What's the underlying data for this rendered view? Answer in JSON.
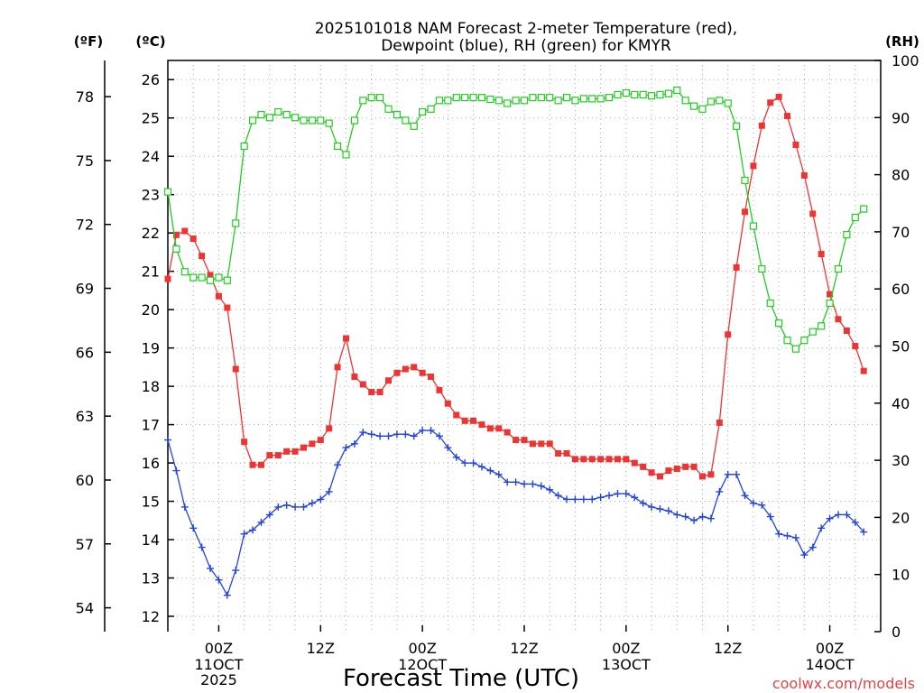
{
  "chart_data": {
    "type": "line",
    "title_line1": "2025101018 NAM Forecast 2-meter Temperature (red),",
    "title_line2": "Dewpoint (blue), RH (green) for KMYR",
    "xlabel": "Forecast Time (UTC)",
    "credit": "coolwx.com/models",
    "unit_f": "(ºF)",
    "unit_c": "(ºC)",
    "unit_rh": "(RH)",
    "x_hours": [
      0,
      84
    ],
    "ylim_c": [
      11.6,
      26.5
    ],
    "ylim_rh": [
      0,
      100
    ],
    "y_ticks_c": [
      12,
      13,
      14,
      15,
      16,
      17,
      18,
      19,
      20,
      21,
      22,
      23,
      24,
      25,
      26
    ],
    "y_ticks_f": [
      54,
      57,
      60,
      63,
      66,
      69,
      72,
      75,
      78
    ],
    "y_ticks_rh": [
      0,
      10,
      20,
      30,
      40,
      50,
      60,
      70,
      80,
      90,
      100
    ],
    "x_ticks": [
      {
        "hour": 6,
        "label": "00Z",
        "label2": "11OCT",
        "label3": "2025"
      },
      {
        "hour": 18,
        "label": "12Z",
        "label2": "",
        "label3": ""
      },
      {
        "hour": 30,
        "label": "00Z",
        "label2": "12OCT",
        "label3": ""
      },
      {
        "hour": 42,
        "label": "12Z",
        "label2": "",
        "label3": ""
      },
      {
        "hour": 54,
        "label": "00Z",
        "label2": "13OCT",
        "label3": ""
      },
      {
        "hour": 66,
        "label": "12Z",
        "label2": "",
        "label3": ""
      },
      {
        "hour": 78,
        "label": "00Z",
        "label2": "14OCT",
        "label3": ""
      }
    ],
    "series": [
      {
        "name": "Temperature",
        "color": "#ee3333",
        "marker": "filled-square",
        "axis": "C",
        "points": [
          [
            0,
            20.8
          ],
          [
            1,
            21.95
          ],
          [
            2,
            22.05
          ],
          [
            3,
            21.85
          ],
          [
            4,
            21.4
          ],
          [
            5,
            20.9
          ],
          [
            6,
            20.35
          ],
          [
            7,
            20.05
          ],
          [
            8,
            18.45
          ],
          [
            9,
            16.55
          ],
          [
            10,
            15.95
          ],
          [
            11,
            15.95
          ],
          [
            12,
            16.2
          ],
          [
            13,
            16.2
          ],
          [
            14,
            16.3
          ],
          [
            15,
            16.3
          ],
          [
            16,
            16.4
          ],
          [
            17,
            16.5
          ],
          [
            18,
            16.6
          ],
          [
            19,
            16.9
          ],
          [
            20,
            18.5
          ],
          [
            21,
            19.25
          ],
          [
            22,
            18.25
          ],
          [
            23,
            18.05
          ],
          [
            24,
            17.85
          ],
          [
            25,
            17.85
          ],
          [
            26,
            18.15
          ],
          [
            27,
            18.35
          ],
          [
            28,
            18.45
          ],
          [
            29,
            18.5
          ],
          [
            30,
            18.35
          ],
          [
            31,
            18.25
          ],
          [
            32,
            17.9
          ],
          [
            33,
            17.55
          ],
          [
            34,
            17.25
          ],
          [
            35,
            17.1
          ],
          [
            36,
            17.1
          ],
          [
            37,
            17.0
          ],
          [
            38,
            16.9
          ],
          [
            39,
            16.9
          ],
          [
            40,
            16.8
          ],
          [
            41,
            16.6
          ],
          [
            42,
            16.6
          ],
          [
            43,
            16.5
          ],
          [
            44,
            16.5
          ],
          [
            45,
            16.5
          ],
          [
            46,
            16.25
          ],
          [
            47,
            16.25
          ],
          [
            48,
            16.1
          ],
          [
            49,
            16.1
          ],
          [
            50,
            16.1
          ],
          [
            51,
            16.1
          ],
          [
            52,
            16.1
          ],
          [
            53,
            16.1
          ],
          [
            54,
            16.1
          ],
          [
            55,
            16.0
          ],
          [
            56,
            15.9
          ],
          [
            57,
            15.75
          ],
          [
            58,
            15.65
          ],
          [
            59,
            15.8
          ],
          [
            60,
            15.85
          ],
          [
            61,
            15.9
          ],
          [
            62,
            15.9
          ],
          [
            63,
            15.65
          ],
          [
            64,
            15.7
          ],
          [
            65,
            17.05
          ],
          [
            66,
            19.35
          ],
          [
            67,
            21.1
          ],
          [
            68,
            22.55
          ],
          [
            69,
            23.75
          ],
          [
            70,
            24.8
          ],
          [
            71,
            25.4
          ],
          [
            72,
            25.55
          ],
          [
            73,
            25.05
          ],
          [
            74,
            24.3
          ],
          [
            75,
            23.5
          ],
          [
            76,
            22.5
          ],
          [
            77,
            21.45
          ],
          [
            78,
            20.4
          ],
          [
            79,
            19.75
          ],
          [
            80,
            19.45
          ],
          [
            81,
            19.05
          ],
          [
            82,
            18.4
          ]
        ]
      },
      {
        "name": "Dewpoint",
        "color": "#2244dd",
        "marker": "plus",
        "axis": "C",
        "points": [
          [
            0,
            16.6
          ],
          [
            1,
            15.8
          ],
          [
            2,
            14.85
          ],
          [
            3,
            14.3
          ],
          [
            4,
            13.8
          ],
          [
            5,
            13.25
          ],
          [
            6,
            12.95
          ],
          [
            7,
            12.55
          ],
          [
            8,
            13.2
          ],
          [
            9,
            14.15
          ],
          [
            10,
            14.25
          ],
          [
            11,
            14.45
          ],
          [
            12,
            14.65
          ],
          [
            13,
            14.85
          ],
          [
            14,
            14.9
          ],
          [
            15,
            14.85
          ],
          [
            16,
            14.85
          ],
          [
            17,
            14.95
          ],
          [
            18,
            15.05
          ],
          [
            19,
            15.25
          ],
          [
            20,
            15.95
          ],
          [
            21,
            16.4
          ],
          [
            22,
            16.5
          ],
          [
            23,
            16.8
          ],
          [
            24,
            16.75
          ],
          [
            25,
            16.7
          ],
          [
            26,
            16.7
          ],
          [
            27,
            16.75
          ],
          [
            28,
            16.75
          ],
          [
            29,
            16.7
          ],
          [
            30,
            16.85
          ],
          [
            31,
            16.85
          ],
          [
            32,
            16.7
          ],
          [
            33,
            16.4
          ],
          [
            34,
            16.15
          ],
          [
            35,
            16.0
          ],
          [
            36,
            16.0
          ],
          [
            37,
            15.9
          ],
          [
            38,
            15.8
          ],
          [
            39,
            15.7
          ],
          [
            40,
            15.5
          ],
          [
            41,
            15.5
          ],
          [
            42,
            15.45
          ],
          [
            43,
            15.45
          ],
          [
            44,
            15.4
          ],
          [
            45,
            15.3
          ],
          [
            46,
            15.15
          ],
          [
            47,
            15.05
          ],
          [
            48,
            15.05
          ],
          [
            49,
            15.05
          ],
          [
            50,
            15.05
          ],
          [
            51,
            15.1
          ],
          [
            52,
            15.15
          ],
          [
            53,
            15.2
          ],
          [
            54,
            15.2
          ],
          [
            55,
            15.1
          ],
          [
            56,
            14.95
          ],
          [
            57,
            14.85
          ],
          [
            58,
            14.8
          ],
          [
            59,
            14.75
          ],
          [
            60,
            14.65
          ],
          [
            61,
            14.6
          ],
          [
            62,
            14.5
          ],
          [
            63,
            14.6
          ],
          [
            64,
            14.55
          ],
          [
            65,
            15.25
          ],
          [
            66,
            15.7
          ],
          [
            67,
            15.7
          ],
          [
            68,
            15.15
          ],
          [
            69,
            14.95
          ],
          [
            70,
            14.9
          ],
          [
            71,
            14.6
          ],
          [
            72,
            14.15
          ],
          [
            73,
            14.1
          ],
          [
            74,
            14.05
          ],
          [
            75,
            13.6
          ],
          [
            76,
            13.8
          ],
          [
            77,
            14.3
          ],
          [
            78,
            14.55
          ],
          [
            79,
            14.65
          ],
          [
            80,
            14.65
          ],
          [
            81,
            14.45
          ],
          [
            82,
            14.2
          ]
        ]
      },
      {
        "name": "RH",
        "color": "#22cc22",
        "marker": "open-square",
        "axis": "RH",
        "points": [
          [
            0,
            77
          ],
          [
            1,
            67
          ],
          [
            2,
            63
          ],
          [
            3,
            62
          ],
          [
            4,
            62
          ],
          [
            5,
            61.5
          ],
          [
            6,
            62
          ],
          [
            7,
            61.5
          ],
          [
            8,
            71.5
          ],
          [
            9,
            85
          ],
          [
            10,
            89.5
          ],
          [
            11,
            90.5
          ],
          [
            12,
            90
          ],
          [
            13,
            91
          ],
          [
            14,
            90.5
          ],
          [
            15,
            90
          ],
          [
            16,
            89.5
          ],
          [
            17,
            89.5
          ],
          [
            18,
            89.5
          ],
          [
            19,
            89
          ],
          [
            20,
            85
          ],
          [
            21,
            83.5
          ],
          [
            22,
            89.5
          ],
          [
            23,
            93
          ],
          [
            24,
            93.5
          ],
          [
            25,
            93.5
          ],
          [
            26,
            91.5
          ],
          [
            27,
            90.5
          ],
          [
            28,
            89.5
          ],
          [
            29,
            88.5
          ],
          [
            30,
            91
          ],
          [
            31,
            91.5
          ],
          [
            32,
            93
          ],
          [
            33,
            93
          ],
          [
            34,
            93.5
          ],
          [
            35,
            93.5
          ],
          [
            36,
            93.5
          ],
          [
            37,
            93.5
          ],
          [
            38,
            93.2
          ],
          [
            39,
            93
          ],
          [
            40,
            92.5
          ],
          [
            41,
            93
          ],
          [
            42,
            93
          ],
          [
            43,
            93.5
          ],
          [
            44,
            93.5
          ],
          [
            45,
            93.5
          ],
          [
            46,
            93
          ],
          [
            47,
            93.5
          ],
          [
            48,
            93
          ],
          [
            49,
            93.3
          ],
          [
            50,
            93.3
          ],
          [
            51,
            93.3
          ],
          [
            52,
            93.5
          ],
          [
            53,
            94
          ],
          [
            54,
            94.3
          ],
          [
            55,
            94
          ],
          [
            56,
            94
          ],
          [
            57,
            93.8
          ],
          [
            58,
            94
          ],
          [
            59,
            94.2
          ],
          [
            60,
            94.8
          ],
          [
            61,
            93
          ],
          [
            62,
            92
          ],
          [
            63,
            91.5
          ],
          [
            64,
            92.8
          ],
          [
            65,
            93
          ],
          [
            66,
            92.5
          ],
          [
            67,
            88.5
          ],
          [
            68,
            79
          ],
          [
            69,
            71
          ],
          [
            70,
            63.5
          ],
          [
            71,
            57.5
          ],
          [
            72,
            54
          ],
          [
            73,
            51
          ],
          [
            74,
            49.5
          ],
          [
            75,
            51
          ],
          [
            76,
            52.5
          ],
          [
            77,
            53.5
          ],
          [
            78,
            57.5
          ],
          [
            79,
            63.5
          ],
          [
            80,
            69.5
          ],
          [
            81,
            72.5
          ],
          [
            82,
            74
          ]
        ]
      }
    ]
  }
}
